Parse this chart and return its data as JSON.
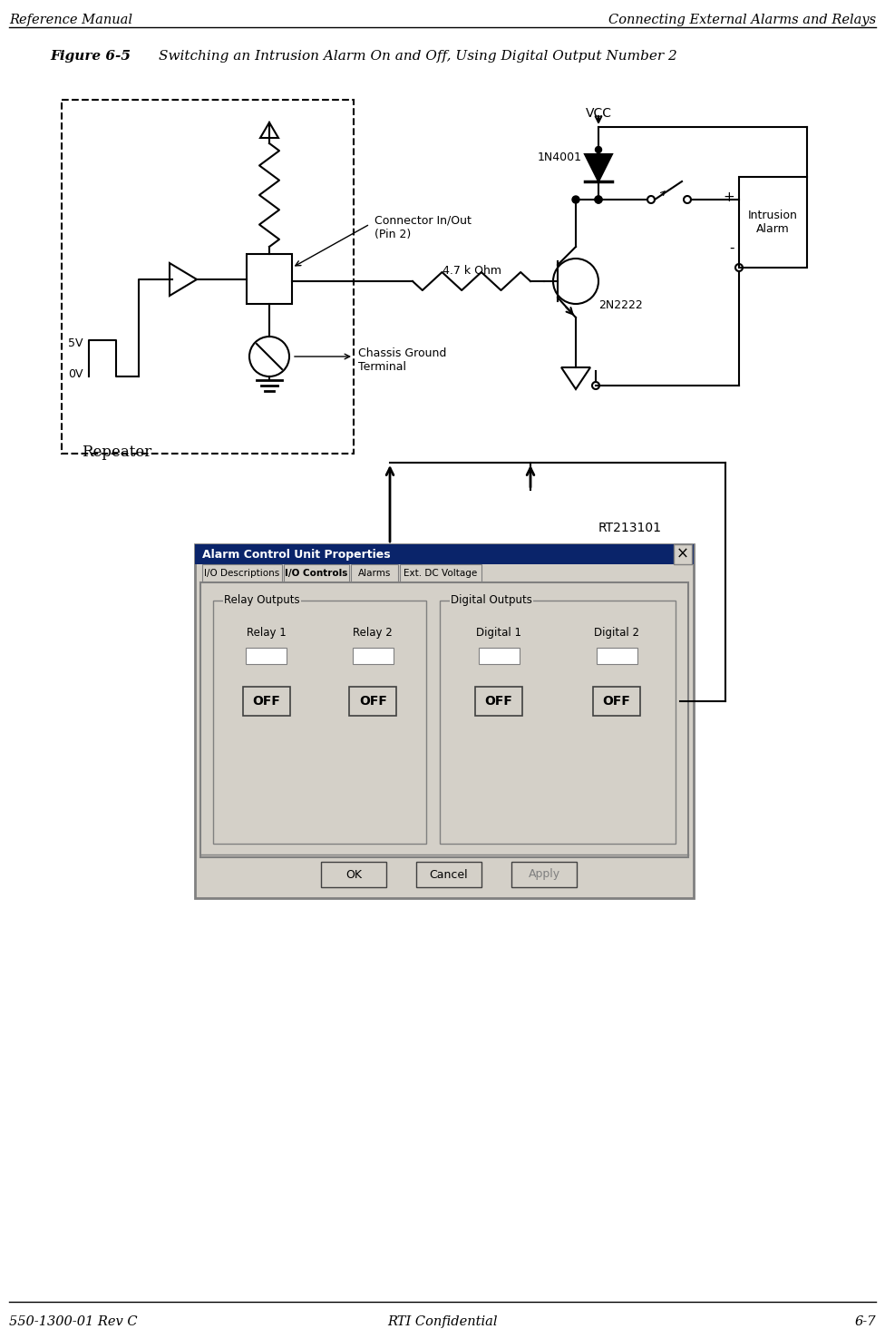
{
  "header_left": "Reference Manual",
  "header_right": "Connecting External Alarms and Relays",
  "footer_left": "550-1300-01 Rev C",
  "footer_center": "RTI Confidential",
  "footer_right": "6-7",
  "figure_label": "Figure 6-5",
  "figure_title": "Switching an Intrusion Alarm On and Off, Using Digital Output Number 2",
  "ref_id": "RT213101",
  "bg_color": "#ffffff",
  "line_color": "#000000",
  "repeater_label": "Repeater",
  "vcc_label": "VCC",
  "diode_label": "1N4001",
  "transistor_label": "2N2222",
  "resistor_label": "4.7 k Ohm",
  "connector_label": "Connector In/Out\n(Pin 2)",
  "ground_label": "Chassis Ground\nTerminal",
  "alarm_label": "Intrusion\nAlarm",
  "v5_label": "5V",
  "v0_label": "0V",
  "plus_label": "+",
  "minus_label": "-",
  "dialog_title": "Alarm Control Unit Properties",
  "tab_names": [
    "I/O Descriptions",
    "I/O Controls",
    "Alarms",
    "Ext. DC Voltage"
  ],
  "group1_label": "Relay Outputs",
  "group2_label": "Digital Outputs",
  "col1_labels": [
    "Relay 1",
    "Relay 2"
  ],
  "col2_labels": [
    "Digital 1",
    "Digital 2"
  ],
  "btn_labels": [
    "OK",
    "Cancel",
    "Apply"
  ],
  "off_label": "OFF"
}
